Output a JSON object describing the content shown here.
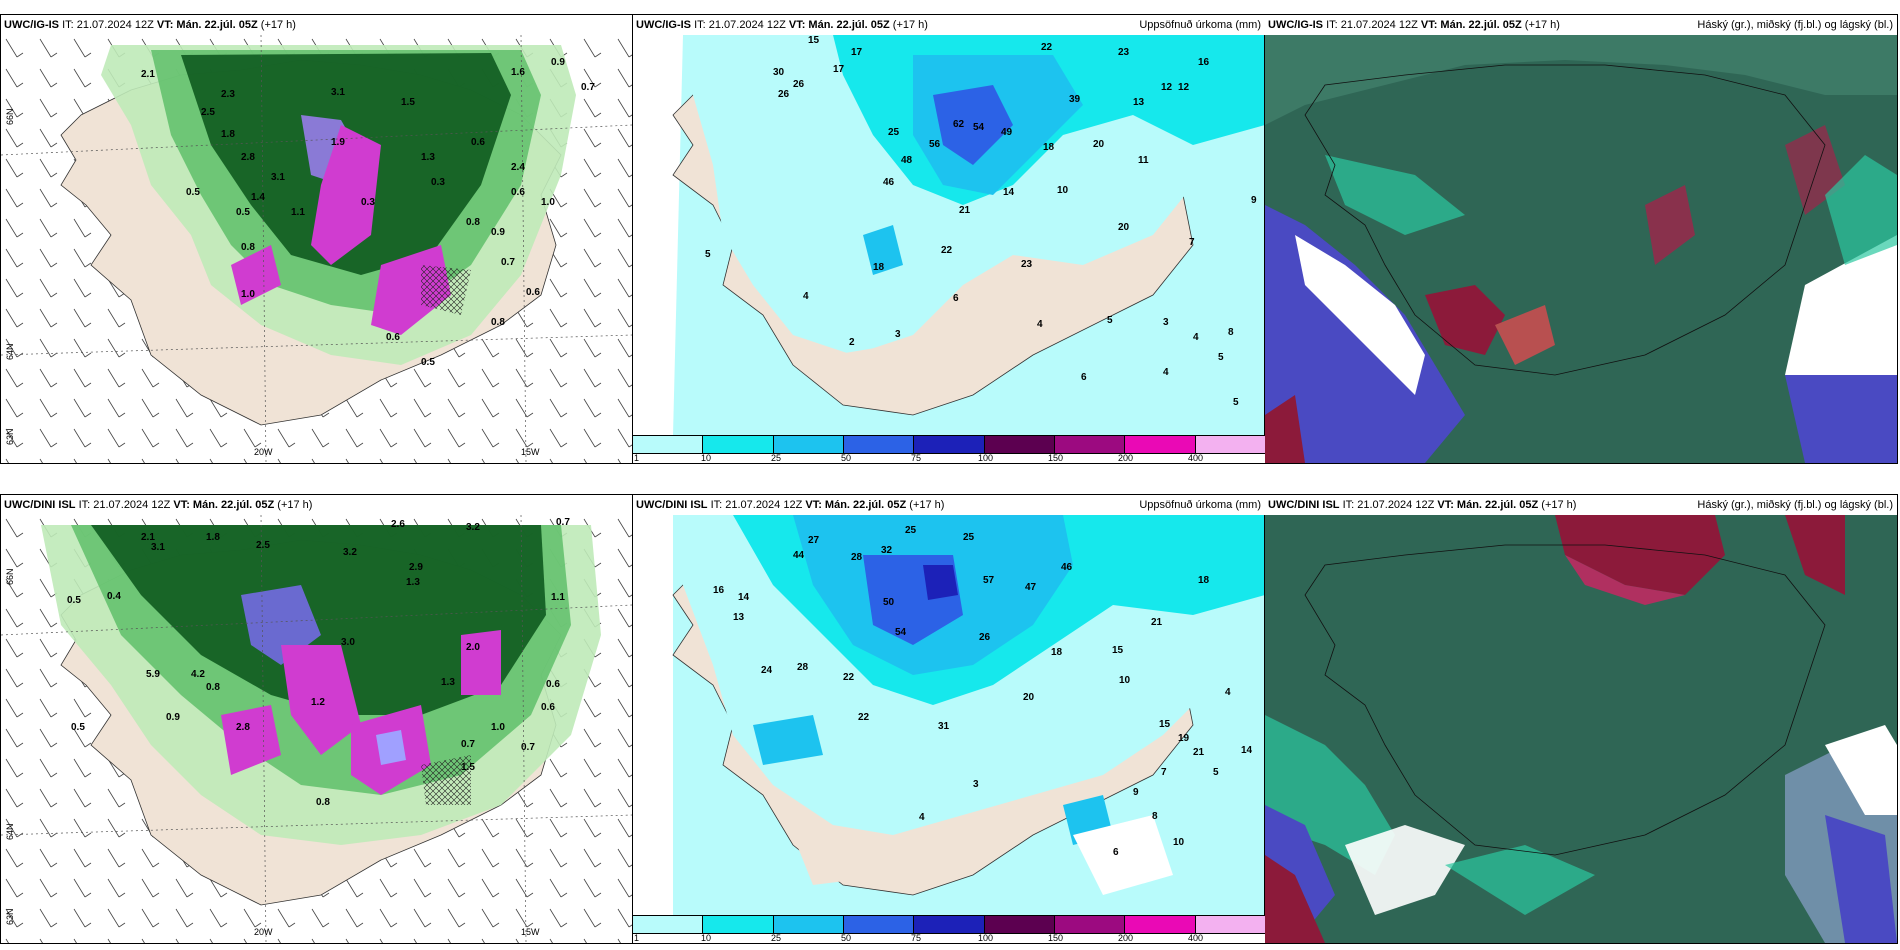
{
  "panels": [
    {
      "id": "top-left",
      "model": "UWC/IG-IS",
      "it_label": "IT: 21.07.2024 12Z",
      "vt_label": "VT: Mán. 22.júl. 05Z",
      "lead": "(+17 h)",
      "right_title": "",
      "axis_labels": [
        "66N",
        "64N",
        "63N",
        "20W",
        "15W"
      ],
      "values": [
        "2.1",
        "2.3",
        "2.5",
        "3.1",
        "1.5",
        "0.7",
        "0.9",
        "1.6",
        "1.8",
        "2.8",
        "1.9",
        "0.6",
        "1.3",
        "3.1",
        "1.4",
        "0.5",
        "0.8",
        "0.8",
        "0.3",
        "1.0",
        "0.6",
        "1.1",
        "0.9",
        "0.7",
        "0.6",
        "0.8",
        "1.0",
        "0.6",
        "0.5",
        "2.4",
        "0.3",
        "0.5"
      ]
    },
    {
      "id": "top-center",
      "model": "UWC/IG-IS",
      "it_label": "IT: 21.07.2024 12Z",
      "vt_label": "VT: Mán. 22.júl. 05Z",
      "lead": "(+17 h)",
      "right_title": "Uppsöfnuð úrkoma (mm)",
      "values": [
        "15",
        "17",
        "17",
        "22",
        "23",
        "16",
        "12",
        "12",
        "13",
        "30",
        "26",
        "26",
        "25",
        "46",
        "48",
        "56",
        "62",
        "54",
        "49",
        "39",
        "18",
        "20",
        "11",
        "21",
        "14",
        "10",
        "9",
        "22",
        "18",
        "23",
        "20",
        "7",
        "5",
        "4",
        "6",
        "3",
        "2",
        "4",
        "5",
        "3",
        "4",
        "5",
        "4",
        "6",
        "8",
        "5"
      ],
      "legend": {
        "colors": [
          "#b8fbfb",
          "#16e8ec",
          "#1dc3ef",
          "#2c62e6",
          "#1c21b8",
          "#5c0050",
          "#9c0a80",
          "#ea09b5",
          "#f3b1f0"
        ],
        "ticks": [
          "1",
          "10",
          "25",
          "50",
          "75",
          "100",
          "150",
          "200",
          "400"
        ]
      }
    },
    {
      "id": "top-right",
      "model": "UWC/IG-IS",
      "it_label": "IT: 21.07.2024 12Z",
      "vt_label": "VT: Mán. 22.júl. 05Z",
      "lead": "(+17 h)",
      "right_title": "Háský (gr.), miðský (fj.bl.) og lágský (bl.)"
    },
    {
      "id": "bottom-left",
      "model": "UWC/DINI ISL",
      "it_label": "IT: 21.07.2024 12Z",
      "vt_label": "VT: Mán. 22.júl. 05Z",
      "lead": "(+17 h)",
      "right_title": "",
      "axis_labels": [
        "66N",
        "64N",
        "63N",
        "20W",
        "15W"
      ],
      "values": [
        "2.1",
        "1.8",
        "3.1",
        "2.6",
        "3.2",
        "2.5",
        "3.2",
        "2.9",
        "0.7",
        "0.5",
        "0.4",
        "5.9",
        "4.2",
        "2.8",
        "1.3",
        "0.9",
        "0.8",
        "1.3",
        "0.6",
        "0.7",
        "0.5",
        "1.2",
        "1.0",
        "0.8",
        "3.0",
        "2.0",
        "0.6",
        "1.5",
        "0.7",
        "1.1"
      ]
    },
    {
      "id": "bottom-center",
      "model": "UWC/DINI ISL",
      "it_label": "IT: 21.07.2024 12Z",
      "vt_label": "VT: Mán. 22.júl. 05Z",
      "lead": "(+17 h)",
      "right_title": "Uppsöfnuð úrkoma (mm)",
      "values": [
        "27",
        "25",
        "25",
        "28",
        "14",
        "13",
        "16",
        "32",
        "44",
        "50",
        "54",
        "57",
        "47",
        "46",
        "26",
        "22",
        "18",
        "21",
        "24",
        "28",
        "22",
        "31",
        "18",
        "15",
        "10",
        "20",
        "4",
        "5",
        "7",
        "9",
        "8",
        "6",
        "10",
        "15",
        "19",
        "21",
        "14",
        "3",
        "4"
      ],
      "legend": {
        "colors": [
          "#b8fbfb",
          "#16e8ec",
          "#1dc3ef",
          "#2c62e6",
          "#1c21b8",
          "#5c0050",
          "#9c0a80",
          "#ea09b5",
          "#f3b1f0"
        ],
        "ticks": [
          "1",
          "10",
          "25",
          "50",
          "75",
          "100",
          "150",
          "200",
          "400"
        ]
      }
    },
    {
      "id": "bottom-right",
      "model": "UWC/DINI ISL",
      "it_label": "IT: 21.07.2024 12Z",
      "vt_label": "VT: Mán. 22.júl. 05Z",
      "lead": "(+17 h)",
      "right_title": "Háský (gr.), miðský (fj.bl.) og lágský (bl.)"
    }
  ],
  "colors": {
    "land": "#f0e3d6",
    "sea_light": "#b8fbfb",
    "sea_cyan": "#16e8ec",
    "dark_green": "#0e5a1f",
    "mid_green": "#5fbf6a",
    "light_green": "#bfeab8",
    "magenta": "#d03cd0",
    "cloud_dark": "#2f6655",
    "cloud_blue": "#4a4ac2",
    "cloud_red": "#8c1a3a",
    "cloud_teal": "#2bc8a0"
  }
}
